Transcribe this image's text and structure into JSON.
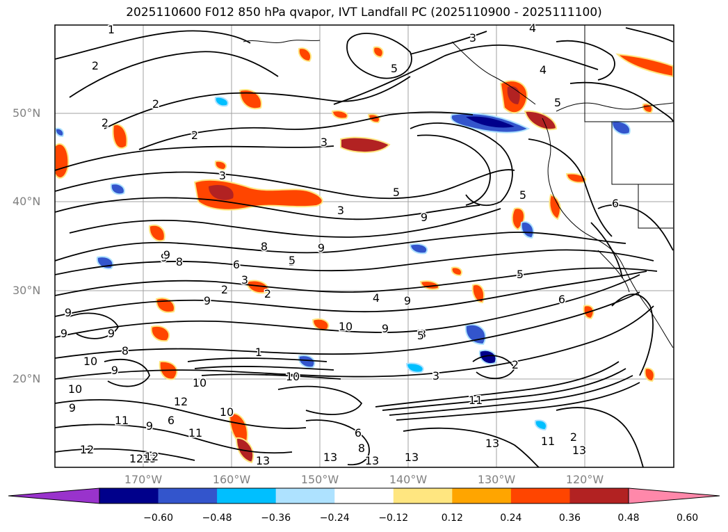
{
  "title": "2025110600 F012 850 hPa qvapor, IVT Landfall PC (2025110900 - 2025111100)",
  "lat_labels": [
    "50°N",
    "40°N",
    "30°N",
    "20°N"
  ],
  "lon_labels": [
    "170°W",
    "160°W",
    "150°W",
    "140°W",
    "130°W",
    "120°W"
  ],
  "colorbar": {
    "colors": [
      "#9933cc",
      "#00008b",
      "#3355cc",
      "#00bfff",
      "#aee2ff",
      "#ffffff",
      "#ffe680",
      "#ffa500",
      "#ff4500",
      "#b22222",
      "#ff88aa"
    ],
    "ticks": [
      "−0.60",
      "−0.48",
      "−0.36",
      "−0.24",
      "−0.12",
      "0.12",
      "0.24",
      "0.36",
      "0.48",
      "0.60"
    ]
  },
  "contour_labels": [
    "1",
    "2",
    "2",
    "2",
    "2",
    "3",
    "3",
    "3",
    "4",
    "5",
    "5",
    "5",
    "4",
    "5",
    "3",
    "9",
    "9",
    "8",
    "5",
    "9",
    "8",
    "6",
    "3",
    "2",
    "2",
    "9",
    "3",
    "4",
    "5",
    "6",
    "9",
    "9",
    "10",
    "10",
    "9",
    "8",
    "9",
    "10",
    "5",
    "9",
    "3",
    "2",
    "10",
    "1",
    "10",
    "9",
    "10",
    "11",
    "12",
    "11",
    "9",
    "6",
    "12",
    "12",
    "13",
    "13",
    "13",
    "13",
    "13",
    "11",
    "11",
    "13",
    "2",
    "12",
    "13",
    "8",
    "6",
    "9",
    "9",
    "5",
    "6"
  ],
  "shading_colors": {
    "pos_light": "#ffa500",
    "pos_mid": "#ff4500",
    "pos_dark": "#b22222",
    "neg_light": "#00bfff",
    "neg_mid": "#3355cc",
    "neg_dark": "#00008b"
  }
}
